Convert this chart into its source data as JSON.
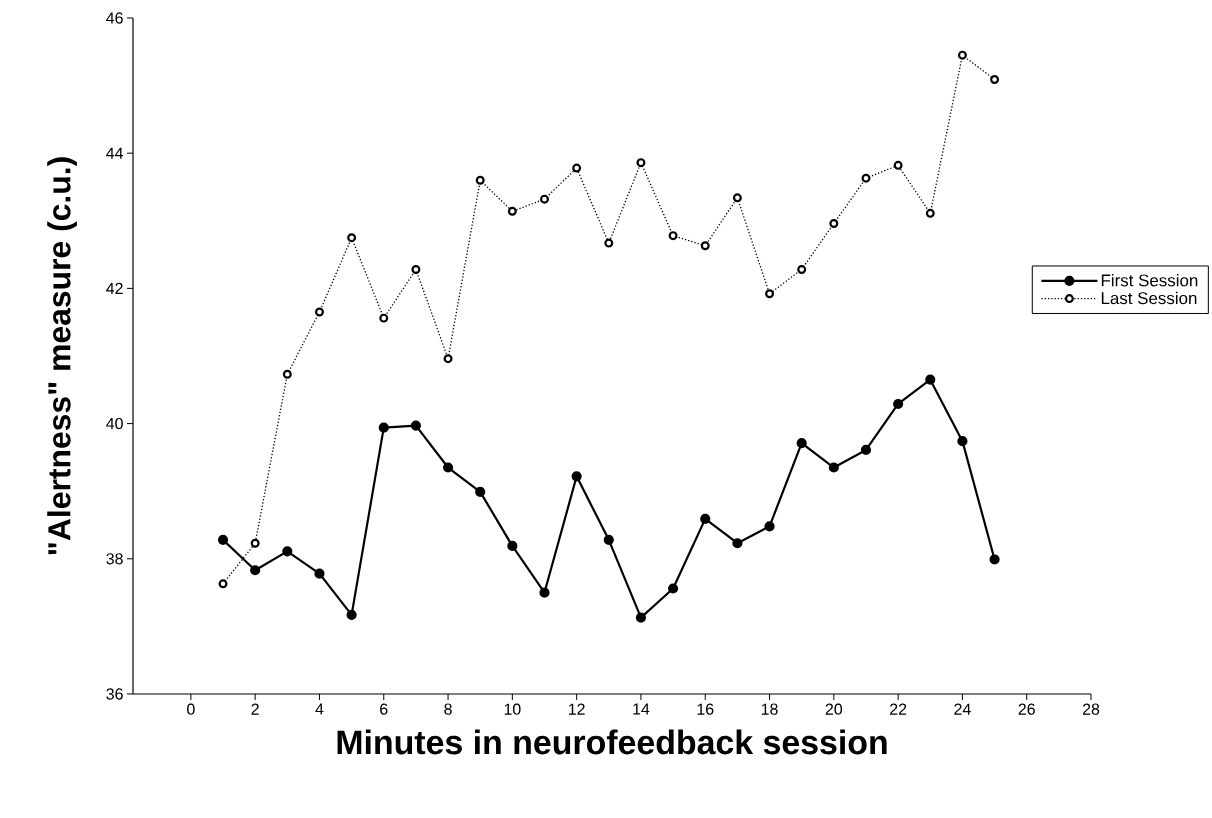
{
  "chart_data": {
    "type": "line",
    "xlabel": "Minutes in neurofeedback session",
    "ylabel": "\"Alertness\" measure (c.u.)",
    "x": [
      1,
      2,
      3,
      4,
      5,
      6,
      7,
      8,
      9,
      10,
      11,
      12,
      13,
      14,
      15,
      16,
      17,
      18,
      19,
      20,
      21,
      22,
      23,
      24,
      25
    ],
    "series": [
      {
        "name": "First Session",
        "color": "#000000",
        "line_style": "solid",
        "marker": "circle",
        "values": [
          38.28,
          37.83,
          38.11,
          37.78,
          37.17,
          39.94,
          39.97,
          39.35,
          38.99,
          38.19,
          37.5,
          39.22,
          38.28,
          37.13,
          37.56,
          38.59,
          38.23,
          38.48,
          39.71,
          39.35,
          39.61,
          40.29,
          40.65,
          39.74,
          37.99
        ]
      },
      {
        "name": "Last Session",
        "color": "#000000",
        "line_style": "dotted",
        "marker": "circle",
        "values": [
          37.63,
          38.23,
          40.73,
          41.65,
          42.75,
          41.56,
          42.28,
          40.96,
          43.6,
          43.14,
          43.32,
          43.78,
          42.67,
          43.86,
          42.78,
          42.63,
          43.34,
          41.92,
          42.28,
          42.96,
          43.63,
          43.82,
          43.11,
          45.45,
          45.09
        ]
      }
    ],
    "xlim": [
      -1.8,
      28
    ],
    "ylim": [
      36,
      46
    ],
    "xticks": [
      0,
      2,
      4,
      6,
      8,
      10,
      12,
      14,
      16,
      18,
      20,
      22,
      24,
      26,
      28
    ],
    "yticks": [
      36,
      38,
      40,
      42,
      44,
      46
    ],
    "grid": false,
    "legend": "right"
  }
}
